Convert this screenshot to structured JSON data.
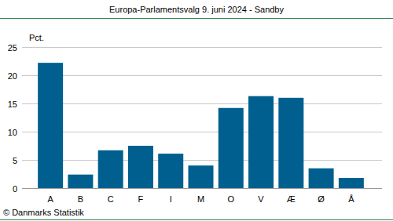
{
  "chart_data": {
    "type": "bar",
    "title": "Europa-Parlamentsvalg 9. juni 2024 - Sandby",
    "y_label": "Pct.",
    "source": "© Danmarks Statistik",
    "categories": [
      "A",
      "B",
      "C",
      "F",
      "I",
      "M",
      "O",
      "V",
      "Æ",
      "Ø",
      "Å"
    ],
    "values": [
      22.2,
      2.4,
      6.7,
      7.5,
      6.1,
      4.0,
      14.2,
      16.3,
      16.0,
      3.5,
      1.8
    ],
    "color": "#005f8f",
    "ylim": [
      0,
      25
    ],
    "yticks": [
      0,
      5,
      10,
      15,
      20,
      25
    ],
    "grid": true
  }
}
